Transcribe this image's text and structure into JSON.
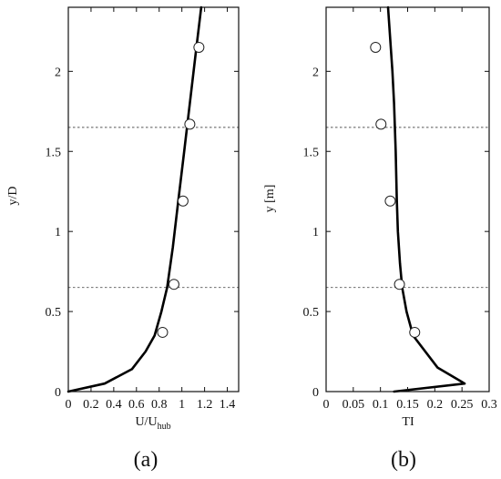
{
  "chart_data": [
    {
      "type": "line",
      "panel_label": "(a)",
      "xlabel_main": "U/U",
      "xlabel_sub": "hub",
      "ylabel": "y/D",
      "xlim": [
        0,
        1.5
      ],
      "ylim": [
        0,
        2.4
      ],
      "xticks": [
        0,
        0.2,
        0.4,
        0.6,
        0.8,
        1,
        1.2,
        1.4
      ],
      "xtick_labels": [
        "0",
        "0.2",
        "0.4",
        "0.6",
        "0.8",
        "1",
        "1.2",
        "1.4"
      ],
      "yticks": [
        0,
        0.5,
        1,
        1.5,
        2
      ],
      "ytick_labels": [
        "0",
        "0.5",
        "1",
        "1.5",
        "2"
      ],
      "reference_lines_y": [
        0.65,
        1.65
      ],
      "series": [
        {
          "kind": "line",
          "x": [
            0,
            0.32,
            0.56,
            0.68,
            0.76,
            0.82,
            0.87,
            0.92,
            0.97,
            1.02,
            1.07,
            1.12,
            1.17
          ],
          "y": [
            0,
            0.05,
            0.14,
            0.25,
            0.35,
            0.5,
            0.65,
            0.9,
            1.2,
            1.5,
            1.8,
            2.1,
            2.4
          ]
        },
        {
          "kind": "scatter",
          "marker": "open-circle",
          "x": [
            0.83,
            0.93,
            1.01,
            1.07,
            1.15
          ],
          "y": [
            0.37,
            0.67,
            1.19,
            1.67,
            2.15
          ]
        }
      ],
      "grid": false
    },
    {
      "type": "line",
      "panel_label": "(b)",
      "xlabel_main": "TI",
      "xlabel_sub": "",
      "ylabel": "y [m]",
      "xlim": [
        0,
        0.3
      ],
      "ylim": [
        0,
        2.4
      ],
      "xticks": [
        0,
        0.05,
        0.1,
        0.15,
        0.2,
        0.25,
        0.3
      ],
      "xtick_labels": [
        "0",
        "0.05",
        "0.1",
        "0.15",
        "0.2",
        "0.25",
        "0.3"
      ],
      "yticks": [
        0,
        0.5,
        1,
        1.5,
        2
      ],
      "ytick_labels": [
        "0",
        "0.5",
        "1",
        "1.5",
        "2"
      ],
      "reference_lines_y": [
        0.65,
        1.65
      ],
      "series": [
        {
          "kind": "line",
          "x": [
            0.125,
            0.255,
            0.205,
            0.16,
            0.148,
            0.14,
            0.136,
            0.132,
            0.13,
            0.128,
            0.125,
            0.122,
            0.118,
            0.114
          ],
          "y": [
            0,
            0.05,
            0.15,
            0.35,
            0.5,
            0.65,
            0.8,
            1.0,
            1.2,
            1.5,
            1.8,
            2.0,
            2.2,
            2.4
          ]
        },
        {
          "kind": "scatter",
          "marker": "open-circle",
          "x": [
            0.163,
            0.135,
            0.118,
            0.101,
            0.091
          ],
          "y": [
            0.37,
            0.67,
            1.19,
            1.67,
            2.15
          ]
        }
      ],
      "grid": false
    }
  ]
}
